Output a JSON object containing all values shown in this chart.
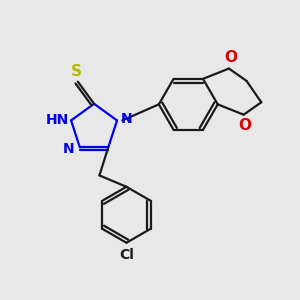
{
  "background_color": "#e8e8e8",
  "bond_color": "#1a1a1a",
  "triazole_color": "#0000ee",
  "sulfur_color": "#b8b800",
  "oxygen_color": "#dd0000",
  "lw": 1.6,
  "figsize": [
    3.0,
    3.0
  ],
  "dpi": 100,
  "xlim": [
    0,
    10
  ],
  "ylim": [
    0,
    10
  ],
  "font_size_atom": 10,
  "font_size_H": 8
}
